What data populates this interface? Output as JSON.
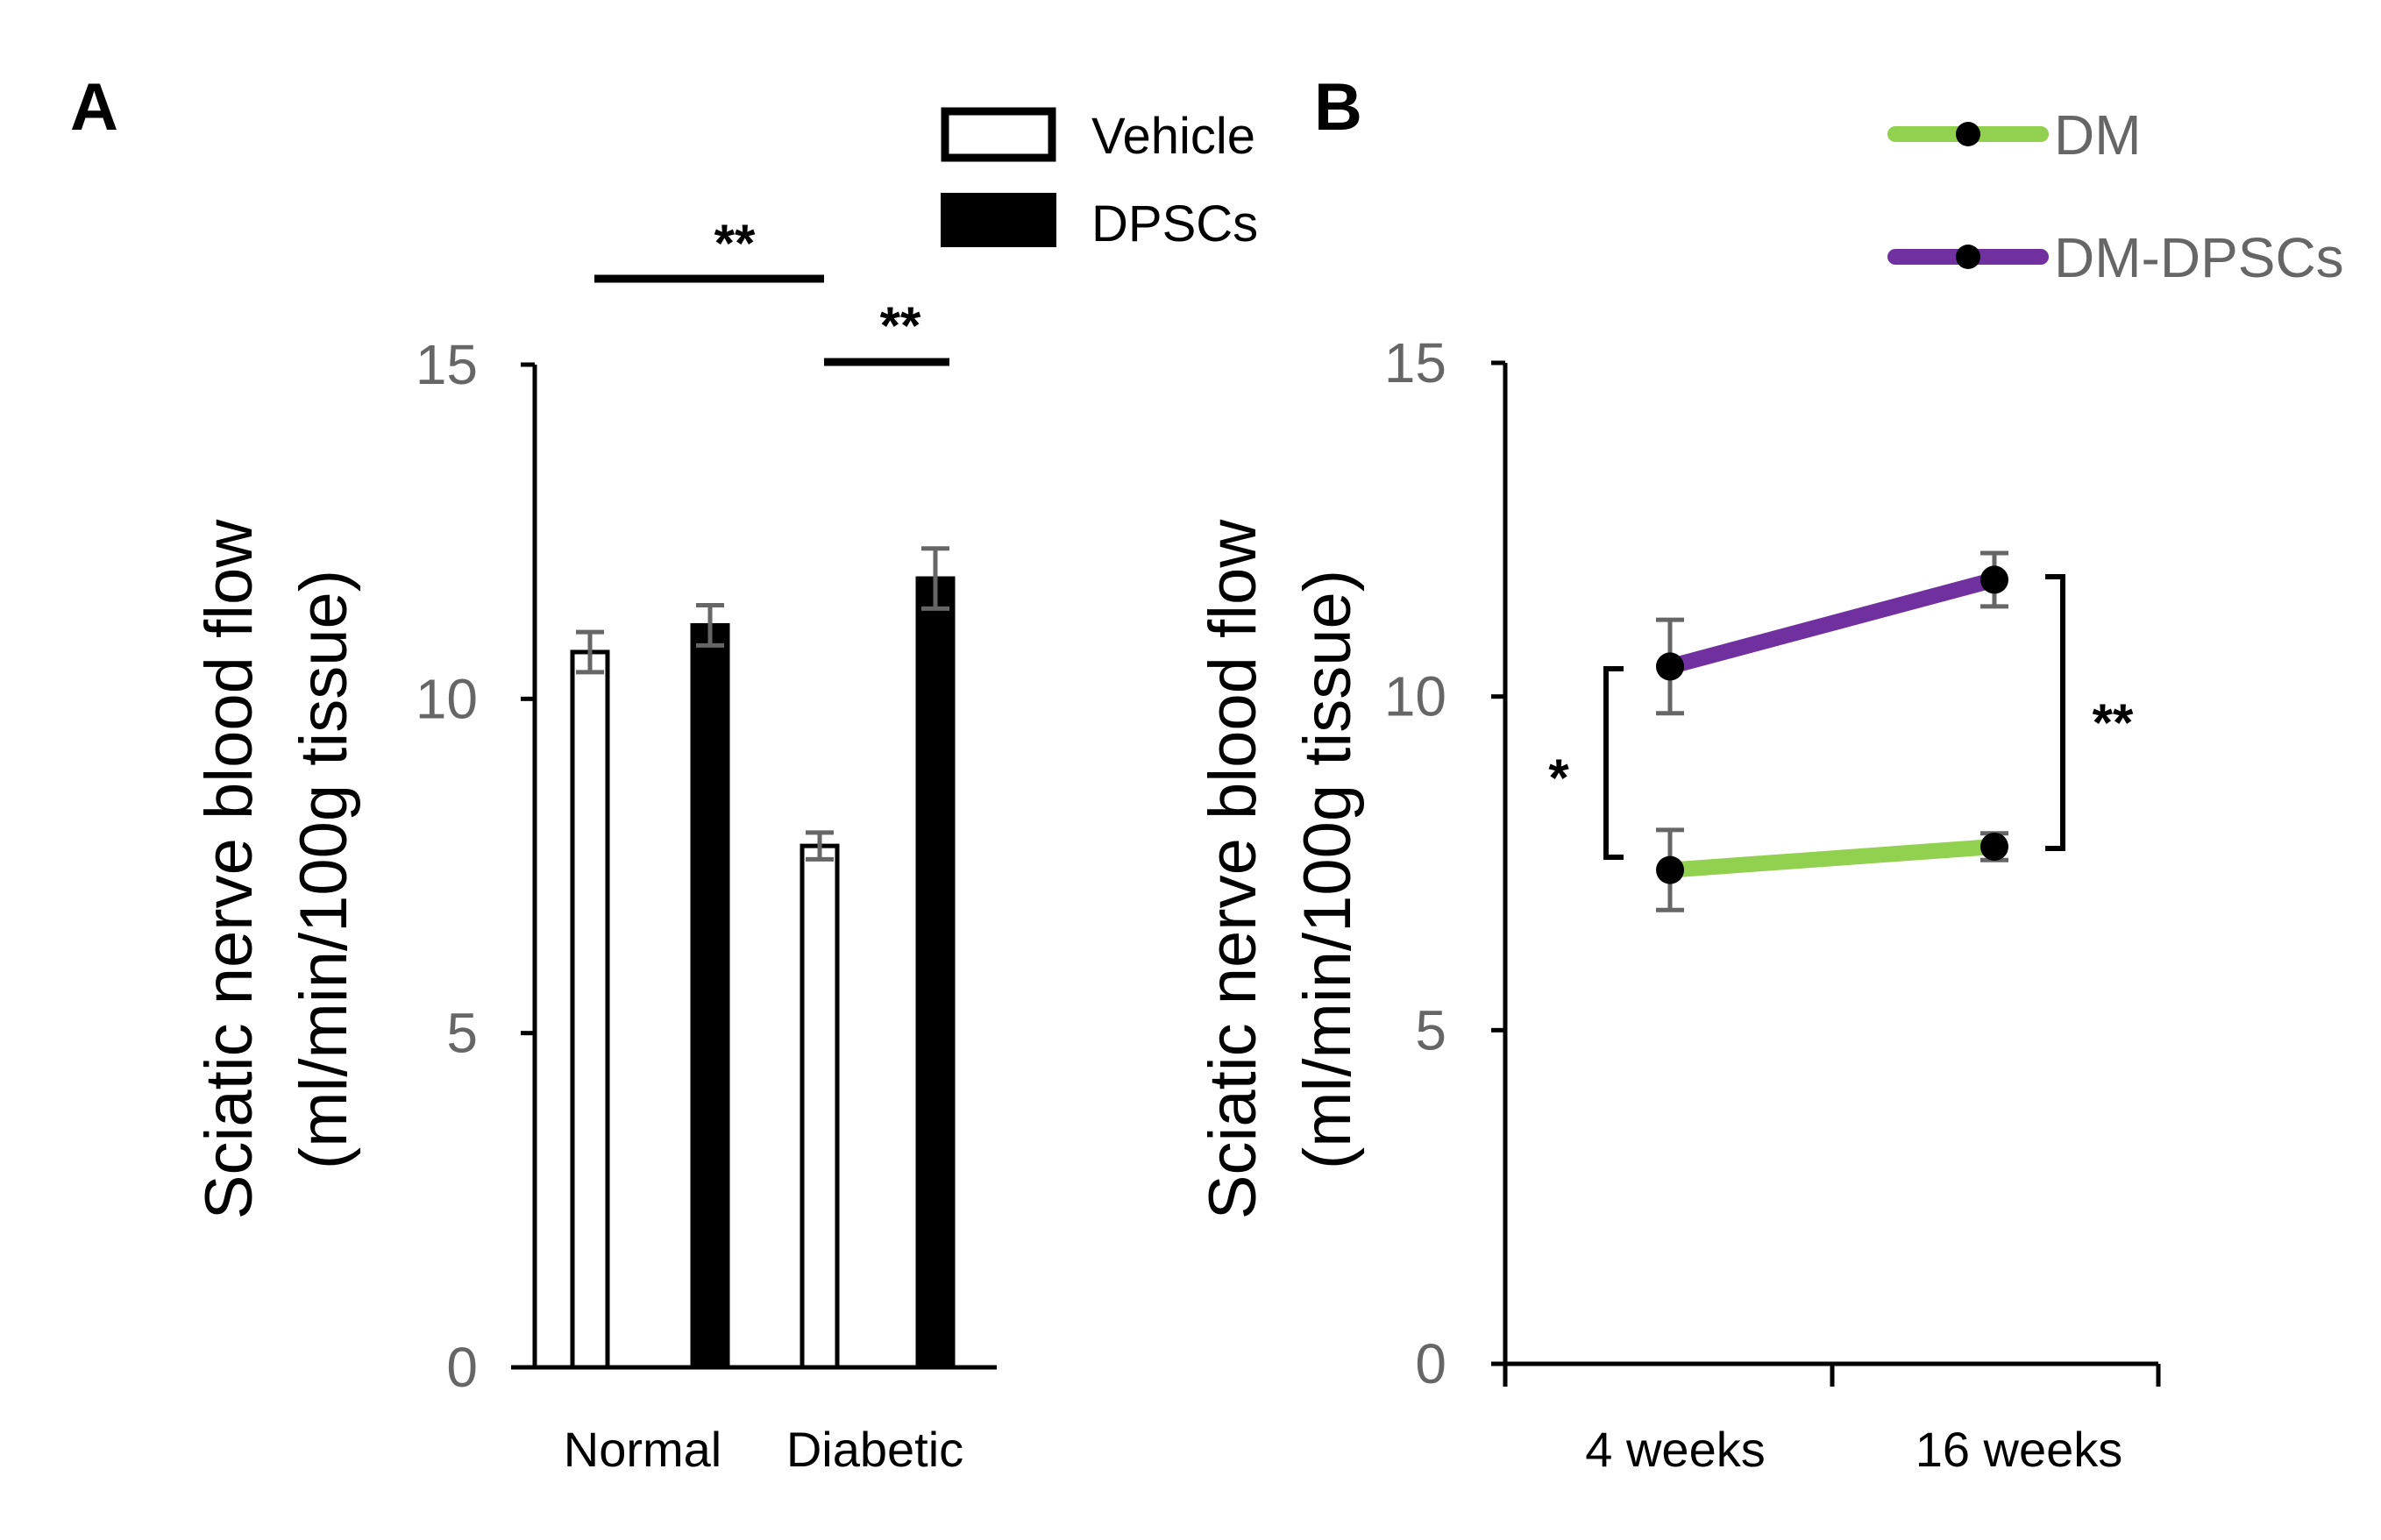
{
  "chart_data": [
    {
      "panel": "A",
      "type": "bar",
      "categories": [
        "Normal",
        "Diabetic"
      ],
      "series": [
        {
          "name": "Vehicle",
          "values": [
            10.7,
            7.8
          ],
          "errors": [
            0.3,
            0.2
          ],
          "fill": "#ffffff",
          "stroke": "#000000"
        },
        {
          "name": "DPSCs",
          "values": [
            11.1,
            11.8
          ],
          "errors": [
            0.3,
            0.45
          ],
          "fill": "#000000",
          "stroke": "#000000"
        }
      ],
      "ylabel_line1": "Sciatic nerve blood flow",
      "ylabel_line2": "(ml/min/100g tissue)",
      "ylim": [
        0,
        15
      ],
      "yticks": [
        "0",
        "5",
        "10",
        "15"
      ],
      "significance": [
        {
          "label": "**",
          "between": "Normal vs Diabetic (Vehicle)"
        },
        {
          "label": "**",
          "between": "Diabetic: Vehicle vs DPSCs"
        }
      ]
    },
    {
      "panel": "B",
      "type": "line",
      "x": [
        "4 weeks",
        "16 weeks"
      ],
      "series": [
        {
          "name": "DM",
          "values": [
            7.4,
            7.75
          ],
          "errors": [
            0.6,
            0.2
          ],
          "color": "#92d050"
        },
        {
          "name": "DM-DPSCs",
          "values": [
            10.45,
            11.75
          ],
          "errors": [
            0.7,
            0.4
          ],
          "color": "#7030a0"
        }
      ],
      "ylabel_line1": "Sciatic nerve blood flow",
      "ylabel_line2": "(ml/min/100g tissue)",
      "ylim": [
        0,
        15
      ],
      "yticks": [
        "0",
        "5",
        "10",
        "15"
      ],
      "significance": [
        {
          "label": "*",
          "between": "DM vs DM-DPSCs at 4 weeks"
        },
        {
          "label": "**",
          "between": "DM vs DM-DPSCs at 16 weeks"
        }
      ]
    }
  ]
}
